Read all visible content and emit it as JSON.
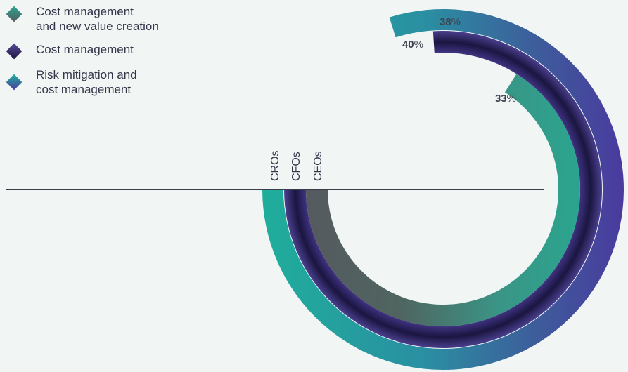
{
  "legend": [
    {
      "label": "Cost management\nand new value creation",
      "icon": "diamond-icon",
      "colors": [
        "#2aa58f",
        "#555a5f"
      ]
    },
    {
      "label": "Cost management",
      "icon": "diamond-icon",
      "colors": [
        "#5a4a9a",
        "#1a1640"
      ]
    },
    {
      "label": "Risk mitigation and\ncost management",
      "icon": "diamond-icon",
      "colors": [
        "#20b09c",
        "#4a3a9e"
      ]
    }
  ],
  "chart_data": {
    "type": "radial-bar",
    "categories": [
      "CROs",
      "CFOs",
      "CEOs"
    ],
    "values": [
      38,
      40,
      33
    ],
    "unit": "%",
    "colors": {
      "CROs": [
        "#1fae9b",
        "#4a3a9e"
      ],
      "CFOs": [
        "#7a6fa8",
        "#1a1640"
      ],
      "CEOs": [
        "#555a5f",
        "#2aa58f"
      ]
    }
  }
}
